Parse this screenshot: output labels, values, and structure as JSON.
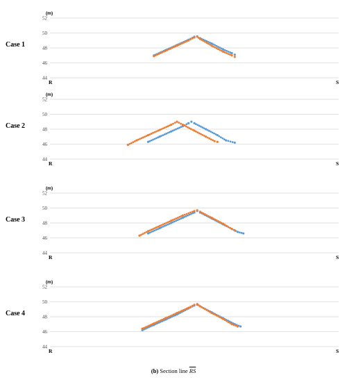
{
  "chart_data": [
    {
      "type": "scatter",
      "case_label": "Case 1",
      "ylabel": "(m)",
      "ylim": [
        44,
        52
      ],
      "yticks": [
        44,
        46,
        48,
        50,
        52
      ],
      "x_start_label": "R",
      "x_end_label": "S",
      "xlim": [
        0,
        100
      ],
      "grid": true,
      "series": [
        {
          "color": "#5B9BD5",
          "points": [
            [
              36,
              47.0
            ],
            [
              40,
              47.7
            ],
            [
              44,
              48.4
            ],
            [
              48,
              49.1
            ],
            [
              50,
              49.5
            ],
            [
              51,
              49.55
            ],
            [
              52,
              49.3
            ],
            [
              56,
              48.6
            ],
            [
              60,
              47.8
            ],
            [
              63,
              47.3
            ],
            [
              64,
              47.1
            ]
          ]
        },
        {
          "color": "#ED7D31",
          "points": [
            [
              36,
              46.9
            ],
            [
              40,
              47.6
            ],
            [
              44,
              48.3
            ],
            [
              48,
              49.0
            ],
            [
              50,
              49.4
            ],
            [
              51,
              49.5
            ],
            [
              52,
              49.2
            ],
            [
              56,
              48.3
            ],
            [
              60,
              47.5
            ],
            [
              63,
              47.0
            ],
            [
              64,
              46.8
            ]
          ]
        }
      ]
    },
    {
      "type": "scatter",
      "case_label": "Case 2",
      "ylabel": "(m)",
      "ylim": [
        44,
        52
      ],
      "yticks": [
        44,
        46,
        48,
        50,
        52
      ],
      "x_start_label": "R",
      "x_end_label": "S",
      "xlim": [
        0,
        100
      ],
      "grid": true,
      "series": [
        {
          "color": "#5B9BD5",
          "points": [
            [
              34,
              46.3
            ],
            [
              38,
              47.0
            ],
            [
              42,
              47.7
            ],
            [
              46,
              48.4
            ],
            [
              48,
              48.8
            ],
            [
              49,
              49.0
            ],
            [
              50,
              48.8
            ],
            [
              54,
              48.0
            ],
            [
              58,
              47.2
            ],
            [
              61,
              46.5
            ],
            [
              64,
              46.2
            ]
          ]
        },
        {
          "color": "#ED7D31",
          "points": [
            [
              27,
              45.9
            ],
            [
              30,
              46.5
            ],
            [
              34,
              47.2
            ],
            [
              38,
              47.9
            ],
            [
              42,
              48.6
            ],
            [
              44,
              49.0
            ],
            [
              46,
              48.6
            ],
            [
              50,
              47.8
            ],
            [
              54,
              47.0
            ],
            [
              57,
              46.4
            ],
            [
              58,
              46.3
            ]
          ]
        }
      ]
    },
    {
      "type": "scatter",
      "case_label": "Case 3",
      "ylabel": "(m)",
      "ylim": [
        44,
        52
      ],
      "yticks": [
        44,
        46,
        48,
        50,
        52
      ],
      "x_start_label": "R",
      "x_end_label": "S",
      "xlim": [
        0,
        100
      ],
      "grid": true,
      "series": [
        {
          "color": "#5B9BD5",
          "points": [
            [
              34,
              46.6
            ],
            [
              38,
              47.3
            ],
            [
              42,
              48.0
            ],
            [
              46,
              48.7
            ],
            [
              50,
              49.4
            ],
            [
              51,
              49.6
            ],
            [
              52,
              49.4
            ],
            [
              56,
              48.6
            ],
            [
              60,
              47.8
            ],
            [
              63,
              47.2
            ],
            [
              65,
              46.8
            ],
            [
              67,
              46.6
            ]
          ]
        },
        {
          "color": "#ED7D31",
          "points": [
            [
              31,
              46.3
            ],
            [
              34,
              46.9
            ],
            [
              38,
              47.6
            ],
            [
              42,
              48.3
            ],
            [
              46,
              49.0
            ],
            [
              50,
              49.6
            ],
            [
              51,
              49.7
            ],
            [
              52,
              49.5
            ],
            [
              56,
              48.7
            ],
            [
              60,
              47.9
            ],
            [
              63,
              47.2
            ],
            [
              64,
              47.0
            ]
          ]
        }
      ]
    },
    {
      "type": "scatter",
      "case_label": "Case 4",
      "ylabel": "(m)",
      "ylim": [
        44,
        52
      ],
      "yticks": [
        44,
        46,
        48,
        50,
        52
      ],
      "x_start_label": "R",
      "x_end_label": "S",
      "xlim": [
        0,
        100
      ],
      "grid": true,
      "series": [
        {
          "color": "#5B9BD5",
          "points": [
            [
              32,
              46.2
            ],
            [
              36,
              46.9
            ],
            [
              40,
              47.6
            ],
            [
              44,
              48.3
            ],
            [
              48,
              49.1
            ],
            [
              50,
              49.5
            ],
            [
              51,
              49.6
            ],
            [
              52,
              49.4
            ],
            [
              56,
              48.6
            ],
            [
              60,
              47.8
            ],
            [
              64,
              47.0
            ],
            [
              66,
              46.7
            ]
          ]
        },
        {
          "color": "#ED7D31",
          "points": [
            [
              32,
              46.4
            ],
            [
              36,
              47.1
            ],
            [
              40,
              47.8
            ],
            [
              44,
              48.5
            ],
            [
              48,
              49.2
            ],
            [
              50,
              49.6
            ],
            [
              51,
              49.7
            ],
            [
              52,
              49.4
            ],
            [
              56,
              48.5
            ],
            [
              60,
              47.7
            ],
            [
              63,
              47.0
            ],
            [
              65,
              46.7
            ]
          ]
        }
      ]
    }
  ],
  "caption": {
    "prefix": "(b)",
    "text": "Section line",
    "overline_text": "RS"
  }
}
